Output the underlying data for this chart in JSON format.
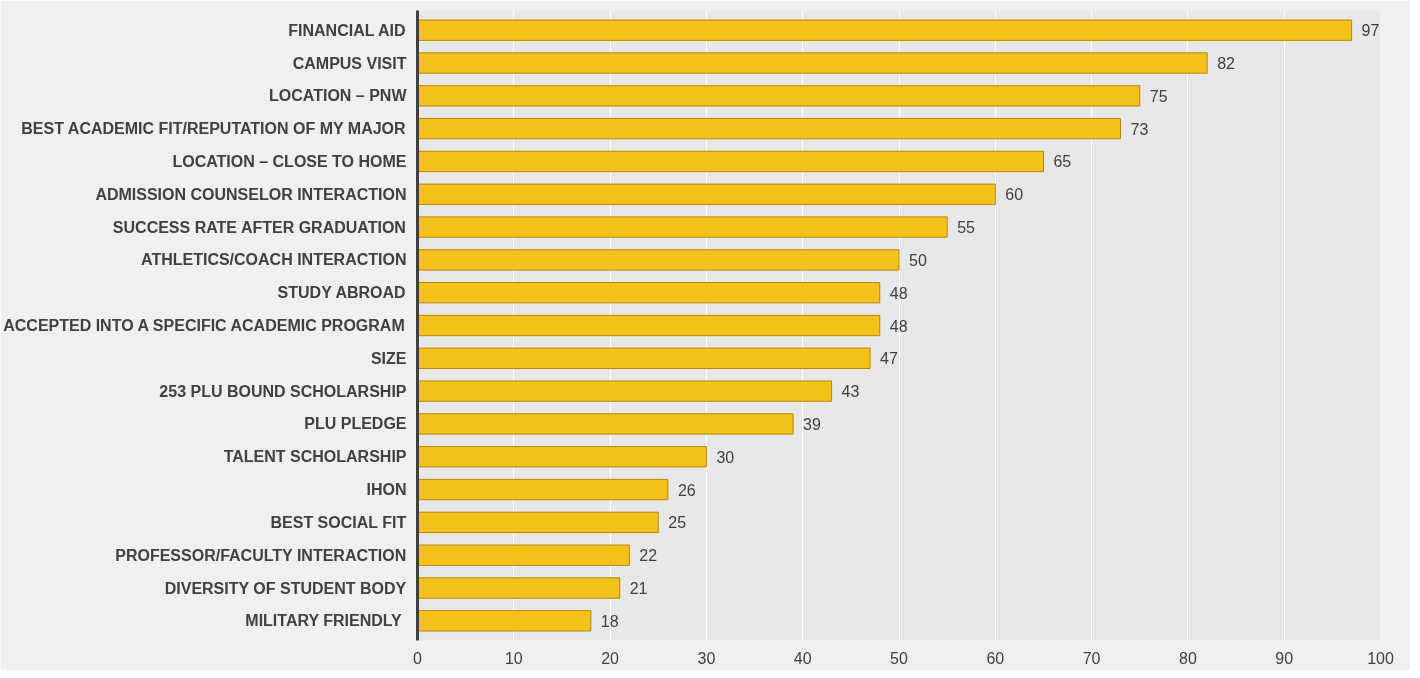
{
  "chart_data": {
    "type": "bar",
    "orientation": "horizontal",
    "categories": [
      "FINANCIAL AID",
      "CAMPUS VISIT",
      "LOCATION – PNW",
      "BEST ACADEMIC FIT/REPUTATION OF MY MAJOR",
      "LOCATION – CLOSE TO HOME",
      "ADMISSION COUNSELOR INTERACTION",
      "SUCCESS RATE AFTER GRADUATION",
      "ATHLETICS/COACH INTERACTION",
      "STUDY ABROAD",
      "ACCEPTED INTO A SPECIFIC ACADEMIC PROGRAM",
      "SIZE",
      "253 PLU BOUND SCHOLARSHIP",
      "PLU PLEDGE",
      "TALENT SCHOLARSHIP",
      "IHON",
      "BEST SOCIAL FIT",
      "PROFESSOR/FACULTY INTERACTION",
      "DIVERSITY OF STUDENT BODY",
      "MILITARY  FRIENDLY"
    ],
    "values": [
      97,
      82,
      75,
      73,
      65,
      60,
      55,
      50,
      48,
      48,
      47,
      43,
      39,
      30,
      26,
      25,
      22,
      21,
      18
    ],
    "color": "#f5c21b",
    "xlim": [
      0,
      100
    ],
    "xticks": [
      0,
      10,
      20,
      30,
      40,
      50,
      60,
      70,
      80,
      90,
      100
    ],
    "grid": "x",
    "data_labels": true
  }
}
